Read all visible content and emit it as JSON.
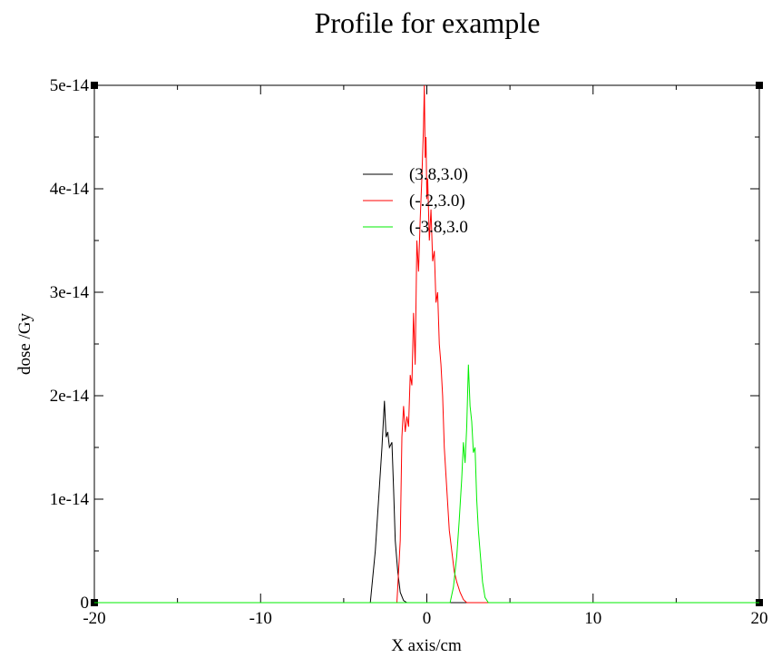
{
  "chart_data": {
    "type": "line",
    "title": "Profile for example",
    "xlabel": "X axis/cm",
    "ylabel": "dose /Gy",
    "xlim": [
      -20,
      20
    ],
    "ylim": [
      0,
      5e-14
    ],
    "x_ticks": [
      -20,
      -10,
      0,
      10,
      20
    ],
    "x_tick_labels": [
      "-20",
      "-10",
      "0",
      "10",
      "20"
    ],
    "y_ticks": [
      0,
      1e-14,
      2e-14,
      3e-14,
      4e-14,
      5e-14
    ],
    "y_tick_labels": [
      "0",
      "1e-14",
      "2e-14",
      "3e-14",
      "4e-14",
      "5e-14"
    ],
    "grid": false,
    "legend_position": "upper-center",
    "colors": {
      "frame": "#000000",
      "series1": "#000000",
      "series2": "#ff0000",
      "series3": "#00ee00"
    },
    "series": [
      {
        "name": "(3.8,3.0)",
        "color": "#000000",
        "x": [
          -20,
          -3.4,
          -3.1,
          -2.9,
          -2.7,
          -2.55,
          -2.45,
          -2.35,
          -2.25,
          -2.1,
          -2.0,
          -1.9,
          -1.75,
          -1.6,
          -1.4,
          -1.2,
          20
        ],
        "y": [
          0,
          0,
          5e-15,
          1e-14,
          1.5e-14,
          1.95e-14,
          1.6e-14,
          1.65e-14,
          1.5e-14,
          1.55e-14,
          1.1e-14,
          6e-15,
          3e-15,
          1e-15,
          2e-16,
          0,
          0
        ]
      },
      {
        "name": "(-.2,3.0)",
        "color": "#ff0000",
        "x": [
          -20,
          -1.8,
          -1.6,
          -1.5,
          -1.4,
          -1.3,
          -1.2,
          -1.1,
          -1.0,
          -0.9,
          -0.8,
          -0.7,
          -0.6,
          -0.5,
          -0.4,
          -0.3,
          -0.2,
          -0.15,
          -0.1,
          -0.05,
          0.0,
          0.05,
          0.15,
          0.25,
          0.35,
          0.45,
          0.55,
          0.65,
          0.75,
          0.85,
          0.95,
          1.05,
          1.2,
          1.35,
          1.5,
          1.65,
          1.8,
          2.0,
          2.2,
          2.4,
          20
        ],
        "y": [
          0,
          0,
          6e-15,
          1.6e-14,
          1.9e-14,
          1.65e-14,
          1.8e-14,
          1.7e-14,
          2.2e-14,
          2.1e-14,
          2.8e-14,
          2.3e-14,
          3.5e-14,
          3.2e-14,
          3.7e-14,
          4.1e-14,
          4.6e-14,
          5e-14,
          4.3e-14,
          4.5e-14,
          3.9e-14,
          4.1e-14,
          3.5e-14,
          3.8e-14,
          3.3e-14,
          3.4e-14,
          2.9e-14,
          3e-14,
          2.5e-14,
          2.3e-14,
          2e-14,
          1.5e-14,
          1.1e-14,
          7e-15,
          5e-15,
          3e-15,
          2e-15,
          1e-15,
          3e-16,
          0,
          0
        ]
      },
      {
        "name": "(-3.8,3.0",
        "color": "#00ee00",
        "x": [
          -20,
          1.4,
          1.6,
          1.8,
          1.95,
          2.1,
          2.2,
          2.3,
          2.4,
          2.5,
          2.6,
          2.7,
          2.8,
          2.9,
          3.0,
          3.1,
          3.2,
          3.35,
          3.5,
          3.7,
          20
        ],
        "y": [
          0,
          0,
          1.5e-15,
          4.5e-15,
          8e-15,
          1.2e-14,
          1.55e-14,
          1.35e-14,
          1.7e-14,
          2.3e-14,
          1.9e-14,
          1.75e-14,
          1.45e-14,
          1.5e-14,
          1e-14,
          7e-15,
          5e-15,
          2e-15,
          5e-16,
          0,
          0
        ]
      }
    ]
  }
}
